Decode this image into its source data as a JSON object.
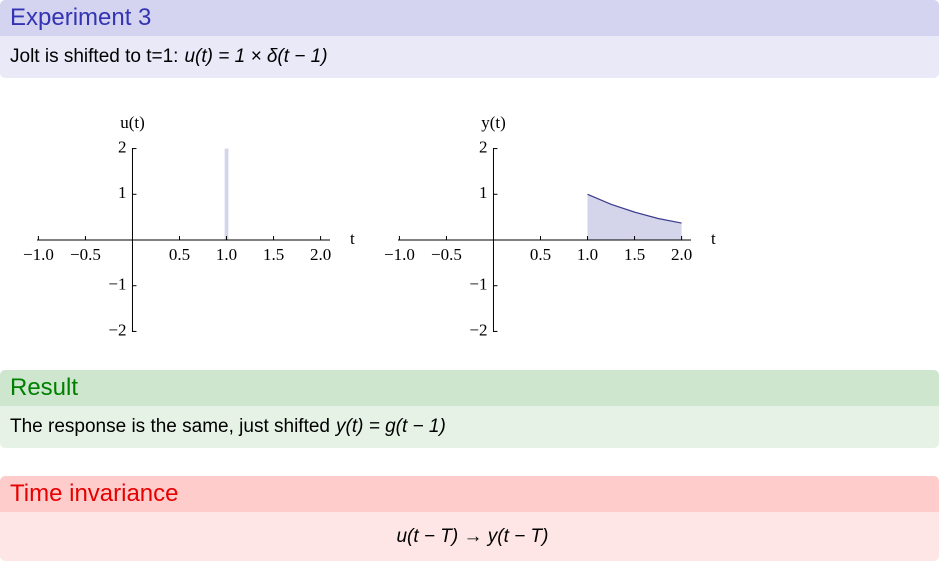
{
  "blocks": [
    {
      "title": "Experiment 3",
      "body": "Jolt is shifted to t=1:",
      "math": "u(t) = 1 × δ(t − 1)"
    },
    {
      "title": "Result",
      "body": "The response is the same, just shifted",
      "math": "y(t) = g(t − 1)"
    },
    {
      "title": "Time invariance",
      "math": "u(t − T) → y(t − T)"
    }
  ],
  "chart_data": [
    {
      "type": "area",
      "y_label": "u(t)",
      "x_label": "t",
      "x": [
        -1,
        0.98,
        0.98,
        1.02,
        1.02,
        2
      ],
      "values": [
        0,
        0,
        2,
        2,
        0,
        0
      ],
      "color": "#d4d4ea",
      "xlim": [
        -1.1,
        2.1
      ],
      "ylim": [
        -2.1,
        2.1
      ],
      "xticks": [
        {
          "value": -1,
          "label": "−1.0"
        },
        {
          "value": -0.5,
          "label": "−0.5"
        },
        0.5,
        {
          "value": 1,
          "label": "1.0"
        },
        1.5,
        {
          "value": 2,
          "label": "2.0"
        }
      ],
      "yticks": [
        {
          "value": -2,
          "label": "−2"
        },
        {
          "value": -1,
          "label": "−1"
        },
        1,
        2
      ]
    },
    {
      "type": "area",
      "y_label": "y(t)",
      "x_label": "t",
      "x": [
        -1,
        1,
        1,
        1.25,
        1.5,
        1.75,
        2
      ],
      "values": [
        0,
        0,
        1,
        0.78,
        0.61,
        0.47,
        0.37
      ],
      "color": "#d4d4ea",
      "line_color": "#3b3b8f",
      "xlim": [
        -1.1,
        2.1
      ],
      "ylim": [
        -2.1,
        2.1
      ],
      "xticks": [
        {
          "value": -1,
          "label": "−1.0"
        },
        {
          "value": -0.5,
          "label": "−0.5"
        },
        0.5,
        {
          "value": 1,
          "label": "1.0"
        },
        1.5,
        {
          "value": 2,
          "label": "2.0"
        }
      ],
      "yticks": [
        {
          "value": -2,
          "label": "−2"
        },
        {
          "value": -1,
          "label": "−1"
        },
        1,
        2
      ]
    }
  ]
}
